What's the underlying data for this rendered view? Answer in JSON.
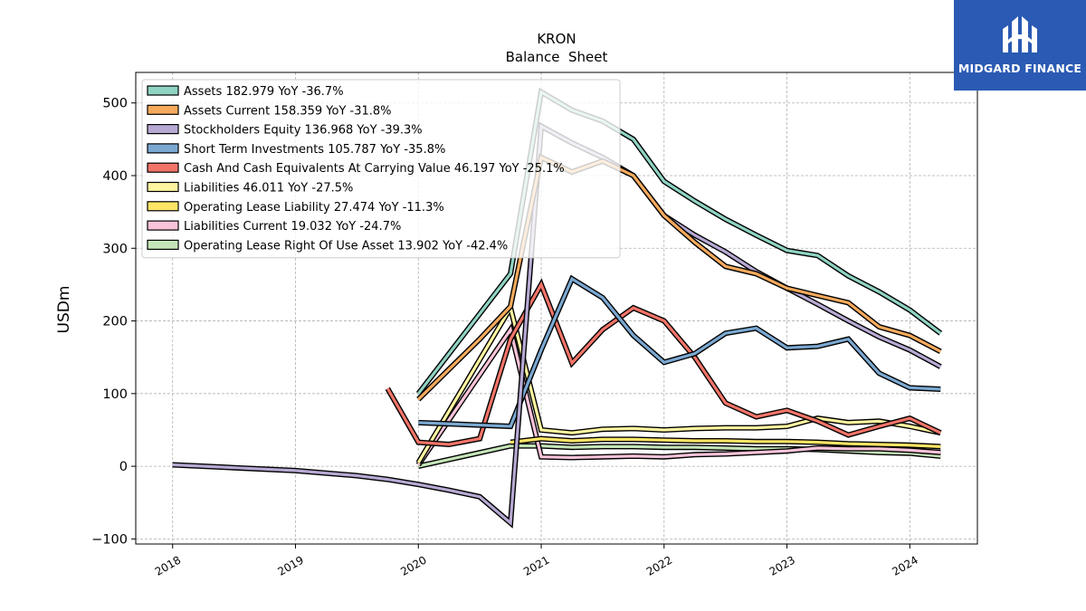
{
  "brand": {
    "name": "MIDGARD FINANCE",
    "bg_color": "#2a5ab3",
    "icon": "midgard-logo-icon"
  },
  "chart_data": {
    "type": "line",
    "title": "KRON",
    "subtitle": "Balance  Sheet",
    "ylabel": "USDm",
    "xlabel": "",
    "xlim": [
      2017.7,
      2024.55
    ],
    "ylim": [
      -107,
      542
    ],
    "y_ticks": [
      -100,
      0,
      100,
      200,
      300,
      400,
      500
    ],
    "y_tick_labels": [
      "−100",
      "0",
      "100",
      "200",
      "300",
      "400",
      "500"
    ],
    "x_ticks": [
      2018,
      2019,
      2020,
      2021,
      2022,
      2023,
      2024
    ],
    "x_tick_labels": [
      "2018",
      "2019",
      "2020",
      "2021",
      "2022",
      "2023",
      "2024"
    ],
    "grid": true,
    "legend_position": "top-left",
    "series": [
      {
        "name": "Assets",
        "legend": "Assets  182.979 YoY -36.7%",
        "color": "#8fd3c3",
        "points": [
          [
            2020.0,
            100
          ],
          [
            2020.75,
            265
          ],
          [
            2021.0,
            515
          ],
          [
            2021.25,
            490
          ],
          [
            2021.5,
            475
          ],
          [
            2021.75,
            450
          ],
          [
            2022.0,
            392
          ],
          [
            2022.25,
            365
          ],
          [
            2022.5,
            340
          ],
          [
            2022.75,
            318
          ],
          [
            2023.0,
            297
          ],
          [
            2023.25,
            290
          ],
          [
            2023.5,
            262
          ],
          [
            2023.75,
            240
          ],
          [
            2024.0,
            215
          ],
          [
            2024.25,
            183
          ]
        ]
      },
      {
        "name": "Assets Current",
        "legend": "Assets Current  158.359 YoY -31.8%",
        "color": "#f5aa5c",
        "points": [
          [
            2020.0,
            92
          ],
          [
            2020.5,
            175
          ],
          [
            2020.75,
            220
          ],
          [
            2021.0,
            425
          ],
          [
            2021.25,
            405
          ],
          [
            2021.5,
            420
          ],
          [
            2021.75,
            400
          ],
          [
            2022.0,
            345
          ],
          [
            2022.25,
            308
          ],
          [
            2022.5,
            275
          ],
          [
            2022.75,
            265
          ],
          [
            2023.0,
            245
          ],
          [
            2023.25,
            235
          ],
          [
            2023.5,
            225
          ],
          [
            2023.75,
            192
          ],
          [
            2024.0,
            180
          ],
          [
            2024.25,
            158
          ]
        ]
      },
      {
        "name": "Stockholders Equity",
        "legend": "Stockholders Equity  136.968 YoY -39.3%",
        "color": "#b7a9d3",
        "points": [
          [
            2018.0,
            2
          ],
          [
            2018.5,
            -2
          ],
          [
            2019.0,
            -6
          ],
          [
            2019.5,
            -13
          ],
          [
            2019.75,
            -18
          ],
          [
            2020.0,
            -25
          ],
          [
            2020.25,
            -33
          ],
          [
            2020.5,
            -42
          ],
          [
            2020.75,
            -78
          ],
          [
            2021.0,
            468
          ],
          [
            2021.25,
            445
          ],
          [
            2021.5,
            425
          ],
          [
            2021.75,
            400
          ],
          [
            2022.0,
            345
          ],
          [
            2022.25,
            318
          ],
          [
            2022.5,
            295
          ],
          [
            2022.75,
            268
          ],
          [
            2023.0,
            245
          ],
          [
            2023.25,
            223
          ],
          [
            2023.5,
            200
          ],
          [
            2023.75,
            178
          ],
          [
            2024.0,
            160
          ],
          [
            2024.25,
            137
          ]
        ]
      },
      {
        "name": "Short Term Investments",
        "legend": "Short Term Investments  105.787 YoY -35.8%",
        "color": "#7aa8d1",
        "points": [
          [
            2020.0,
            60
          ],
          [
            2020.75,
            55
          ],
          [
            2021.0,
            160
          ],
          [
            2021.25,
            258
          ],
          [
            2021.5,
            232
          ],
          [
            2021.75,
            180
          ],
          [
            2022.0,
            143
          ],
          [
            2022.25,
            155
          ],
          [
            2022.5,
            183
          ],
          [
            2022.75,
            190
          ],
          [
            2023.0,
            163
          ],
          [
            2023.25,
            165
          ],
          [
            2023.5,
            175
          ],
          [
            2023.75,
            128
          ],
          [
            2024.0,
            108
          ],
          [
            2024.25,
            106
          ]
        ]
      },
      {
        "name": "Cash And Cash Equivalents At Carrying Value",
        "legend": "Cash And Cash Equivalents At Carrying Value  46.197 YoY -25.1%",
        "color": "#f27468",
        "points": [
          [
            2019.75,
            107
          ],
          [
            2020.0,
            33
          ],
          [
            2020.25,
            30
          ],
          [
            2020.5,
            38
          ],
          [
            2020.75,
            175
          ],
          [
            2021.0,
            250
          ],
          [
            2021.25,
            142
          ],
          [
            2021.5,
            188
          ],
          [
            2021.75,
            218
          ],
          [
            2022.0,
            200
          ],
          [
            2022.25,
            150
          ],
          [
            2022.5,
            87
          ],
          [
            2022.75,
            68
          ],
          [
            2023.0,
            77
          ],
          [
            2023.25,
            62
          ],
          [
            2023.5,
            43
          ],
          [
            2023.75,
            55
          ],
          [
            2024.0,
            66
          ],
          [
            2024.25,
            46
          ]
        ]
      },
      {
        "name": "Liabilities",
        "legend": "Liabilities  46.011 YoY -27.5%",
        "color": "#fff5a0",
        "points": [
          [
            2020.0,
            5
          ],
          [
            2020.75,
            218
          ],
          [
            2021.0,
            50
          ],
          [
            2021.25,
            46
          ],
          [
            2021.5,
            51
          ],
          [
            2021.75,
            52
          ],
          [
            2022.0,
            50
          ],
          [
            2022.25,
            52
          ],
          [
            2022.5,
            53
          ],
          [
            2022.75,
            53
          ],
          [
            2023.0,
            55
          ],
          [
            2023.25,
            66
          ],
          [
            2023.5,
            60
          ],
          [
            2023.75,
            62
          ],
          [
            2024.0,
            55
          ],
          [
            2024.25,
            46
          ]
        ]
      },
      {
        "name": "Operating Lease Liability",
        "legend": "Operating Lease Liability  27.474 YoY -11.3%",
        "color": "#ffe566",
        "points": [
          [
            2020.75,
            33
          ],
          [
            2021.0,
            38
          ],
          [
            2021.25,
            35
          ],
          [
            2021.5,
            37
          ],
          [
            2021.75,
            37
          ],
          [
            2022.0,
            36
          ],
          [
            2022.25,
            35
          ],
          [
            2022.5,
            35
          ],
          [
            2022.75,
            34
          ],
          [
            2023.0,
            34
          ],
          [
            2023.25,
            33
          ],
          [
            2023.5,
            31
          ],
          [
            2023.75,
            30
          ],
          [
            2024.0,
            29
          ],
          [
            2024.25,
            27
          ]
        ]
      },
      {
        "name": "Liabilities Current",
        "legend": "Liabilities Current  19.032 YoY -24.7%",
        "color": "#f9c3d9",
        "points": [
          [
            2020.0,
            2
          ],
          [
            2020.75,
            188
          ],
          [
            2021.0,
            13
          ],
          [
            2021.25,
            12
          ],
          [
            2021.5,
            13
          ],
          [
            2021.75,
            14
          ],
          [
            2022.0,
            13
          ],
          [
            2022.25,
            16
          ],
          [
            2022.5,
            17
          ],
          [
            2022.75,
            19
          ],
          [
            2023.0,
            21
          ],
          [
            2023.25,
            25
          ],
          [
            2023.5,
            24
          ],
          [
            2023.75,
            24
          ],
          [
            2024.0,
            22
          ],
          [
            2024.25,
            19
          ]
        ]
      },
      {
        "name": "Operating Lease Right Of Use Asset",
        "legend": "Operating Lease Right Of Use Asset  13.902 YoY -42.4%",
        "color": "#c5e5b8",
        "points": [
          [
            2020.0,
            0
          ],
          [
            2020.75,
            28
          ],
          [
            2021.0,
            28
          ],
          [
            2021.25,
            26
          ],
          [
            2021.5,
            27
          ],
          [
            2021.75,
            27
          ],
          [
            2022.0,
            26
          ],
          [
            2022.25,
            26
          ],
          [
            2022.5,
            25
          ],
          [
            2022.75,
            24
          ],
          [
            2023.0,
            24
          ],
          [
            2023.25,
            23
          ],
          [
            2023.5,
            21
          ],
          [
            2023.75,
            19
          ],
          [
            2024.0,
            18
          ],
          [
            2024.25,
            14
          ]
        ]
      }
    ]
  }
}
